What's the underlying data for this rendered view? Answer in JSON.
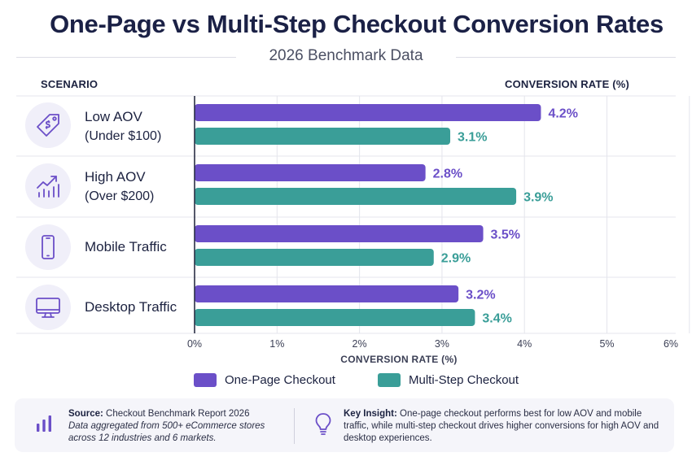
{
  "header": {
    "title": "One-Page vs Multi-Step Checkout Conversion Rates",
    "subtitle": "2026 Benchmark Data",
    "scenario_heading": "SCENARIO",
    "rate_heading": "CONVERSION RATE (%)"
  },
  "scenarios": [
    {
      "main": "Low AOV",
      "sub": "(Under $100)",
      "icon": "price-tag-icon"
    },
    {
      "main": "High AOV",
      "sub": "(Over $200)",
      "icon": "growth-chart-icon"
    },
    {
      "main": "Mobile Traffic",
      "sub": "",
      "icon": "smartphone-icon"
    },
    {
      "main": "Desktop Traffic",
      "sub": "",
      "icon": "desktop-monitor-icon"
    }
  ],
  "chart_data": {
    "type": "bar",
    "orientation": "horizontal",
    "categories": [
      "Low AOV (Under $100)",
      "High AOV (Over $200)",
      "Mobile Traffic",
      "Desktop Traffic"
    ],
    "series": [
      {
        "name": "One-Page Checkout",
        "values": [
          4.2,
          2.8,
          3.5,
          3.2
        ],
        "labels": [
          "4.2%",
          "2.8%",
          "3.5%",
          "3.2%"
        ],
        "color": "#6b4fc8"
      },
      {
        "name": "Multi-Step Checkout",
        "values": [
          3.1,
          3.9,
          2.9,
          3.4
        ],
        "labels": [
          "3.1%",
          "3.9%",
          "2.9%",
          "3.4%"
        ],
        "color": "#3a9e98"
      }
    ],
    "xlim": [
      0,
      6
    ],
    "xticks": [
      "0%",
      "1%",
      "2%",
      "3%",
      "4%",
      "5%",
      "6%"
    ],
    "xlabel": "CONVERSION RATE (%)",
    "grid": true,
    "legend_position": "bottom"
  },
  "footer": {
    "source_label": "Source:",
    "source_title": "Checkout Benchmark Report 2026",
    "source_line1": "Data aggregated from 500+ eCommerce stores",
    "source_line2": "across 12 industries and 6 markets.",
    "insight_label": "Key Insight:",
    "insight_text": "One-page checkout performs best for low AOV and mobile traffic, while multi-step checkout drives higher conversions for high AOV and desktop experiences."
  },
  "colors": {
    "one_page": "#6b4fc8",
    "multi_step": "#3a9e98",
    "icon_stroke": "#6b4fc8",
    "title": "#1b2146"
  }
}
